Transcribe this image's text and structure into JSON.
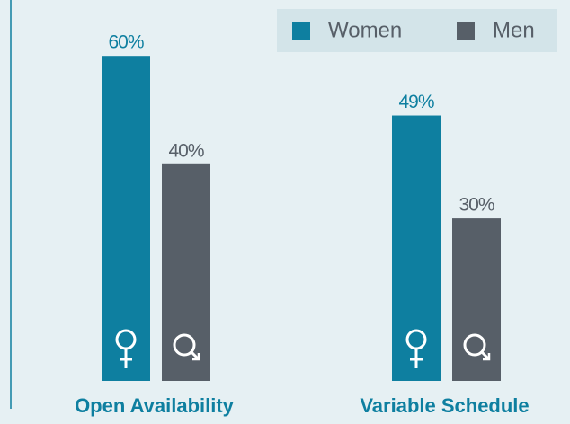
{
  "chart_data": {
    "type": "bar",
    "categories": [
      "Open Availability",
      "Variable Schedule"
    ],
    "series": [
      {
        "name": "Women",
        "color": "#0e7fa0",
        "values": [
          60,
          49
        ],
        "value_labels": [
          "60%",
          "49%"
        ]
      },
      {
        "name": "Men",
        "color": "#575f68",
        "values": [
          40,
          30
        ],
        "value_labels": [
          "40%",
          "30%"
        ]
      }
    ],
    "ylim": [
      0,
      100
    ],
    "legend": "top-right"
  }
}
